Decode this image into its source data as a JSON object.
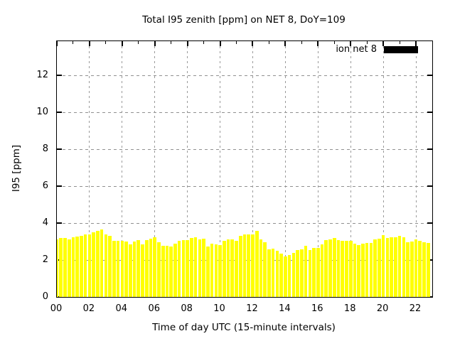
{
  "title": "Total I95 zenith [ppm] on NET 8, DoY=109",
  "legend": {
    "label": "ion net 8",
    "swatch_color": "#000000"
  },
  "colors": {
    "bar": "#ffff00",
    "background": "#ffffff",
    "grid": "#909090",
    "border": "#000000"
  },
  "chart_data": {
    "type": "bar",
    "title": "Total I95 zenith [ppm] on NET 8, DoY=109",
    "xlabel": "Time of day UTC (15-minute intervals)",
    "ylabel": "I95 [ppm]",
    "legend_position": "top-right-inside",
    "grid": true,
    "xlim": [
      0,
      23
    ],
    "ylim": [
      0,
      13.85
    ],
    "xticks": {
      "values": [
        0,
        2,
        4,
        6,
        8,
        10,
        12,
        14,
        16,
        18,
        20,
        22
      ],
      "labels": [
        "00",
        "02",
        "04",
        "06",
        "08",
        "10",
        "12",
        "14",
        "16",
        "18",
        "20",
        "22"
      ]
    },
    "x_minor_tick_hours": [
      1,
      3,
      5,
      7,
      9,
      11,
      13,
      15,
      17,
      19,
      21,
      23
    ],
    "yticks": [
      0,
      2,
      4,
      6,
      8,
      10,
      12
    ],
    "x_start_hour": 0.0,
    "x_step_hours": 0.25,
    "series": [
      {
        "name": "ion net 8",
        "values": [
          3.1,
          3.2,
          3.18,
          3.13,
          3.22,
          3.26,
          3.3,
          3.38,
          3.4,
          3.5,
          3.58,
          3.65,
          3.38,
          3.3,
          3.05,
          3.05,
          3.05,
          3.0,
          2.85,
          3.02,
          3.08,
          2.85,
          3.08,
          3.15,
          3.22,
          2.95,
          2.78,
          2.78,
          2.73,
          2.9,
          3.05,
          3.06,
          3.06,
          3.19,
          3.25,
          3.1,
          3.15,
          2.72,
          2.9,
          2.83,
          2.8,
          3.03,
          3.1,
          3.13,
          3.05,
          3.3,
          3.38,
          3.4,
          3.4,
          3.58,
          3.1,
          2.96,
          2.58,
          2.6,
          2.5,
          2.36,
          2.18,
          2.28,
          2.38,
          2.55,
          2.58,
          2.77,
          2.55,
          2.64,
          2.64,
          2.83,
          3.09,
          3.13,
          3.18,
          3.09,
          3.05,
          3.03,
          3.03,
          2.87,
          2.8,
          2.9,
          2.92,
          2.92,
          3.13,
          3.15,
          3.35,
          3.2,
          3.22,
          3.25,
          3.3,
          3.25,
          2.95,
          3.0,
          3.1,
          3.05,
          2.96,
          2.93
        ]
      }
    ]
  }
}
